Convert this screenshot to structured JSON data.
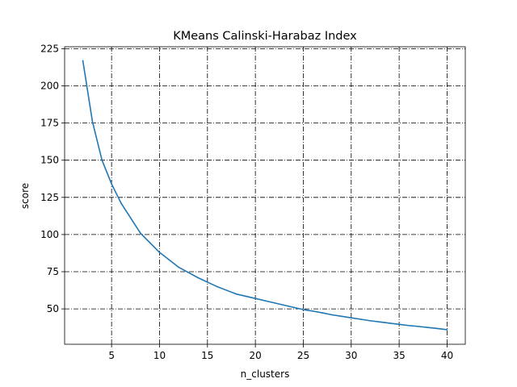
{
  "chart_data": {
    "type": "line",
    "title": "KMeans Calinski-Harabaz Index",
    "xlabel": "n_clusters",
    "ylabel": "score",
    "xlim": [
      0.1,
      41.9
    ],
    "ylim": [
      26.2,
      226.3
    ],
    "xticks": [
      5,
      10,
      15,
      20,
      25,
      30,
      35,
      40
    ],
    "yticks": [
      50,
      75,
      100,
      125,
      150,
      175,
      200,
      225
    ],
    "grid": true,
    "legend": "none",
    "series": [
      {
        "color": "#1f77b4",
        "x": [
          2,
          3,
          4,
          5,
          6,
          7,
          8,
          9,
          10,
          11,
          12,
          13,
          14,
          15,
          16,
          17,
          18,
          19,
          20,
          21,
          22,
          23,
          24,
          25,
          26,
          27,
          28,
          29,
          30,
          31,
          32,
          33,
          34,
          35,
          36,
          37,
          38,
          39,
          40
        ],
        "y": [
          217,
          176,
          150,
          134,
          121,
          111,
          101,
          94.5,
          88,
          83,
          78,
          74.5,
          71,
          68,
          65,
          62.5,
          60,
          58.5,
          57,
          55.5,
          54,
          52.5,
          51,
          49.5,
          48.5,
          47.3,
          46,
          45,
          44,
          43,
          42,
          41.2,
          40.4,
          39.6,
          38.8,
          38.2,
          37.5,
          36.8,
          36
        ]
      }
    ]
  }
}
